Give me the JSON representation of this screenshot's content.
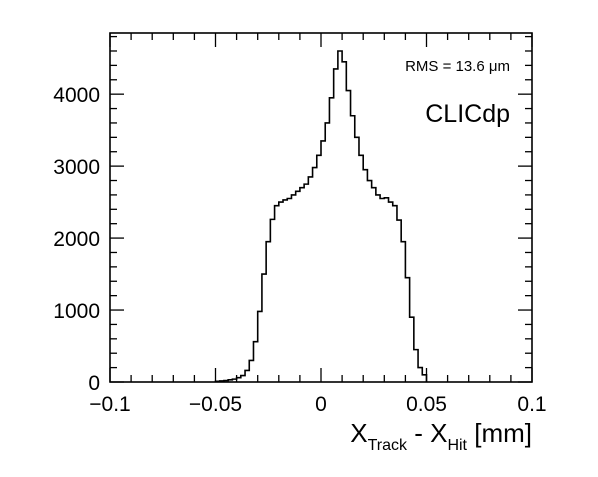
{
  "chart_data": {
    "type": "histogram-step",
    "xlabel": {
      "main1": "X",
      "sub1": "Track",
      "mid": " - X",
      "sub2": "Hit",
      "unit": " [mm]"
    },
    "ylabel": "",
    "title": "",
    "annotations": {
      "rms": "RMS = 13.6 μm",
      "experiment": "CLICdp"
    },
    "xlim": [
      -0.1,
      0.1
    ],
    "ylim": [
      0,
      4850
    ],
    "x_ticks": [
      {
        "value": -0.1,
        "label": "−0.1"
      },
      {
        "value": -0.05,
        "label": "−0.05"
      },
      {
        "value": 0,
        "label": "0"
      },
      {
        "value": 0.05,
        "label": "0.05"
      },
      {
        "value": 0.1,
        "label": "0.1"
      }
    ],
    "y_ticks": [
      {
        "value": 0,
        "label": "0"
      },
      {
        "value": 1000,
        "label": "1000"
      },
      {
        "value": 2000,
        "label": "2000"
      },
      {
        "value": 3000,
        "label": "3000"
      },
      {
        "value": 4000,
        "label": "4000"
      }
    ],
    "bin_width": 0.002,
    "series": [
      {
        "x_start": -0.05,
        "values": [
          10,
          15,
          20,
          30,
          40,
          60,
          90,
          160,
          300,
          560,
          980,
          1500,
          1950,
          2260,
          2450,
          2500,
          2530,
          2550,
          2600,
          2650,
          2700,
          2750,
          2850,
          2980,
          3150,
          3350,
          3600,
          3950,
          4350,
          4600,
          4450,
          4050,
          3700,
          3400,
          3150,
          2950,
          2800,
          2700,
          2600,
          2550,
          2560,
          2500,
          2450,
          2250,
          1950,
          1450,
          900,
          450,
          200,
          100
        ]
      }
    ],
    "grid": false,
    "legend": "none"
  }
}
